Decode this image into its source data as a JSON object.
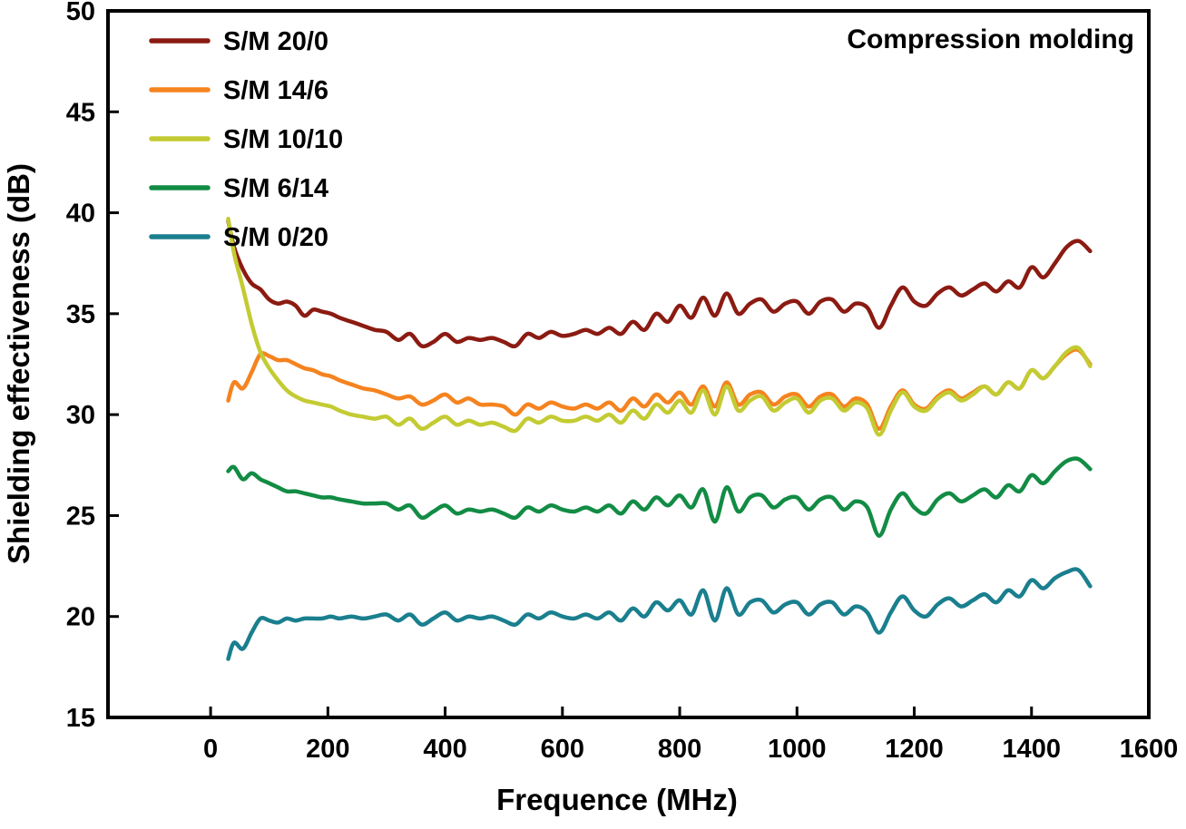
{
  "chart_data": {
    "type": "line",
    "title": "",
    "annotation": "Compression molding",
    "xlabel": "Frequence (MHz)",
    "ylabel": "Shielding effectiveness (dB)",
    "xlim": [
      -175,
      1600
    ],
    "ylim": [
      15,
      50
    ],
    "x_ticks": [
      0,
      200,
      400,
      600,
      800,
      1000,
      1200,
      1400,
      1600
    ],
    "y_ticks": [
      15,
      20,
      25,
      30,
      35,
      40,
      45,
      50
    ],
    "grid": false,
    "legend_position": "top-left-inside",
    "axis_color": "#000000",
    "x": [
      30,
      40,
      55,
      70,
      85,
      100,
      115,
      130,
      145,
      160,
      175,
      190,
      205,
      220,
      240,
      260,
      280,
      300,
      320,
      340,
      360,
      380,
      400,
      420,
      440,
      460,
      480,
      500,
      520,
      540,
      560,
      580,
      600,
      620,
      640,
      660,
      680,
      700,
      720,
      740,
      760,
      780,
      800,
      820,
      840,
      860,
      880,
      900,
      920,
      940,
      960,
      980,
      1000,
      1020,
      1040,
      1060,
      1080,
      1100,
      1120,
      1140,
      1160,
      1180,
      1200,
      1220,
      1240,
      1260,
      1280,
      1300,
      1320,
      1340,
      1360,
      1380,
      1400,
      1420,
      1440,
      1460,
      1480,
      1500
    ],
    "series": [
      {
        "name": "S/M 20/0",
        "color": "#8B1B12",
        "values": [
          39.6,
          38.3,
          37.2,
          36.5,
          36.2,
          35.7,
          35.5,
          35.6,
          35.4,
          34.9,
          35.2,
          35.1,
          35.0,
          34.8,
          34.6,
          34.4,
          34.2,
          34.1,
          33.7,
          34.0,
          33.4,
          33.6,
          34.0,
          33.6,
          33.8,
          33.7,
          33.8,
          33.6,
          33.4,
          34.0,
          33.8,
          34.1,
          33.9,
          34.0,
          34.2,
          34.0,
          34.3,
          34.0,
          34.6,
          34.2,
          35.0,
          34.6,
          35.4,
          34.8,
          35.8,
          34.9,
          36.0,
          35.0,
          35.5,
          35.7,
          35.1,
          35.5,
          35.6,
          35.0,
          35.6,
          35.7,
          35.1,
          35.5,
          35.3,
          34.3,
          35.4,
          36.3,
          35.6,
          35.4,
          36.0,
          36.3,
          35.9,
          36.2,
          36.5,
          36.1,
          36.6,
          36.3,
          37.3,
          36.8,
          37.5,
          38.3,
          38.6,
          38.1
        ]
      },
      {
        "name": "S/M 14/6",
        "color": "#F5831F",
        "values": [
          30.7,
          31.6,
          31.3,
          32.1,
          33.0,
          32.9,
          32.7,
          32.7,
          32.5,
          32.3,
          32.2,
          32.0,
          31.9,
          31.7,
          31.5,
          31.3,
          31.2,
          31.0,
          30.8,
          30.9,
          30.5,
          30.7,
          31.0,
          30.6,
          30.8,
          30.5,
          30.5,
          30.4,
          30.0,
          30.5,
          30.3,
          30.6,
          30.4,
          30.3,
          30.5,
          30.3,
          30.6,
          30.2,
          30.8,
          30.4,
          31.0,
          30.6,
          31.1,
          30.5,
          31.4,
          30.4,
          31.6,
          30.5,
          31.0,
          31.1,
          30.5,
          30.9,
          31.0,
          30.4,
          30.9,
          31.0,
          30.4,
          30.8,
          30.5,
          29.3,
          30.4,
          31.2,
          30.5,
          30.3,
          30.9,
          31.2,
          30.8,
          31.1,
          31.4,
          31.0,
          31.6,
          31.3,
          32.2,
          31.8,
          32.4,
          33.0,
          33.2,
          32.5
        ]
      },
      {
        "name": "S/M 10/10",
        "color": "#C3CB33",
        "values": [
          39.7,
          38.0,
          36.3,
          34.5,
          33.1,
          32.3,
          31.7,
          31.2,
          30.9,
          30.7,
          30.6,
          30.5,
          30.4,
          30.2,
          30.0,
          29.9,
          29.8,
          29.9,
          29.5,
          29.8,
          29.3,
          29.6,
          29.9,
          29.5,
          29.7,
          29.5,
          29.6,
          29.4,
          29.2,
          29.8,
          29.6,
          29.9,
          29.7,
          29.7,
          29.9,
          29.7,
          30.0,
          29.6,
          30.2,
          29.8,
          30.5,
          30.1,
          30.7,
          30.1,
          31.2,
          30.0,
          31.4,
          30.2,
          30.7,
          30.9,
          30.2,
          30.6,
          30.8,
          30.1,
          30.7,
          30.8,
          30.2,
          30.6,
          30.3,
          29.0,
          30.2,
          31.1,
          30.4,
          30.2,
          30.8,
          31.1,
          30.7,
          31.0,
          31.4,
          31.0,
          31.6,
          31.3,
          32.2,
          31.8,
          32.4,
          33.1,
          33.3,
          32.4
        ]
      },
      {
        "name": "S/M 6/14",
        "color": "#128C44",
        "values": [
          27.2,
          27.4,
          26.8,
          27.1,
          26.8,
          26.6,
          26.4,
          26.2,
          26.2,
          26.1,
          26.0,
          25.9,
          25.9,
          25.8,
          25.7,
          25.6,
          25.6,
          25.6,
          25.3,
          25.5,
          24.9,
          25.2,
          25.5,
          25.1,
          25.3,
          25.2,
          25.3,
          25.1,
          24.9,
          25.4,
          25.2,
          25.5,
          25.3,
          25.2,
          25.4,
          25.2,
          25.5,
          25.1,
          25.7,
          25.3,
          25.9,
          25.5,
          26.0,
          25.4,
          26.3,
          24.7,
          26.4,
          25.2,
          25.9,
          26.0,
          25.4,
          25.8,
          25.9,
          25.3,
          25.8,
          25.9,
          25.3,
          25.7,
          25.4,
          24.0,
          25.3,
          26.1,
          25.4,
          25.1,
          25.8,
          26.1,
          25.7,
          26.0,
          26.3,
          25.9,
          26.5,
          26.2,
          27.0,
          26.6,
          27.2,
          27.7,
          27.8,
          27.3
        ]
      },
      {
        "name": "S/M 0/20",
        "color": "#1A7F8E",
        "values": [
          17.9,
          18.7,
          18.4,
          19.2,
          19.9,
          19.8,
          19.7,
          19.9,
          19.8,
          19.9,
          19.9,
          19.9,
          20.0,
          19.9,
          20.0,
          19.9,
          20.0,
          20.1,
          19.8,
          20.1,
          19.6,
          19.9,
          20.2,
          19.8,
          20.0,
          19.9,
          20.0,
          19.8,
          19.6,
          20.1,
          19.9,
          20.2,
          20.0,
          19.9,
          20.1,
          19.9,
          20.2,
          19.8,
          20.4,
          20.0,
          20.7,
          20.3,
          20.8,
          20.1,
          21.3,
          19.8,
          21.4,
          20.1,
          20.7,
          20.8,
          20.2,
          20.6,
          20.7,
          20.1,
          20.6,
          20.7,
          20.1,
          20.5,
          20.2,
          19.2,
          20.2,
          21.0,
          20.3,
          20.0,
          20.6,
          20.9,
          20.5,
          20.8,
          21.1,
          20.7,
          21.3,
          21.0,
          21.8,
          21.4,
          21.9,
          22.2,
          22.3,
          21.5
        ]
      }
    ]
  }
}
